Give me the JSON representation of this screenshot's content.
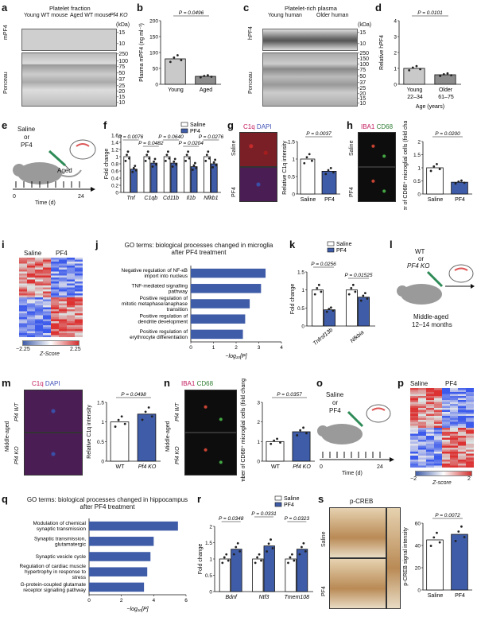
{
  "panels": {
    "a": {
      "label": "a",
      "header": "Platelet fraction",
      "groups": [
        "Young WT mouse",
        "Aged WT mouse",
        "Pf4 KO"
      ],
      "unit": "(kDa)",
      "ylab_top": "mPF4",
      "ylab_bottom": "Ponceau",
      "mw_top": [
        "-15",
        "-10"
      ],
      "mw_bottom": [
        "-250",
        "-100",
        "-75",
        "-50",
        "-37",
        "-25",
        "-20",
        "-15",
        "-10"
      ]
    },
    "b": {
      "label": "b",
      "p": "P = 0.0496"
    },
    "c": {
      "label": "c",
      "header": "Platelet-rich plasma",
      "groups": [
        "Young human",
        "Older human"
      ],
      "unit": "(kDa)",
      "ylab_top": "hPF4",
      "ylab_bottom": "Ponceau",
      "mw_top": [
        "-15",
        "-10"
      ],
      "mw_bottom": [
        "-250",
        "-150",
        "-100",
        "-75",
        "-50",
        "-37",
        "-25",
        "-20",
        "-15",
        "-10"
      ]
    },
    "d": {
      "label": "d",
      "p": "P = 0.0101",
      "age_ranges": [
        "22–34",
        "61–75"
      ]
    },
    "e": {
      "label": "e",
      "lines": [
        "Saline",
        "or",
        "PF4"
      ],
      "aged": "Aged",
      "t0": "0",
      "t1": "24",
      "xlab": "Time (d)"
    },
    "f": {
      "label": "f",
      "legend": [
        "Saline",
        "PF4"
      ],
      "pvals": [
        "P = 0.0076",
        "P = 0.0482",
        "P = 0.0640",
        "P = 0.0204",
        "P = 0.0276"
      ]
    },
    "g": {
      "label": "g",
      "stain1": "C1q",
      "stain2": "DAPI",
      "row1": "Saline",
      "row2": "PF4",
      "p": "P = 0.0037"
    },
    "h": {
      "label": "h",
      "stain1": "IBA1",
      "stain2": "CD68",
      "row1": "Saline",
      "row2": "PF4",
      "p": "P = 0.0200"
    },
    "i": {
      "label": "i",
      "cols": [
        "Saline",
        "PF4"
      ],
      "scale_min": "−2.25",
      "scale_max": "2.25",
      "scale_label": "Z-Score"
    },
    "j": {
      "label": "j",
      "title": "GO terms: biological processes changed in microglia after PF4 treatment"
    },
    "k": {
      "label": "k",
      "legend": [
        "Saline",
        "PF4"
      ],
      "pvals": [
        "P = 0.0256",
        "P = 0.01525"
      ]
    },
    "l": {
      "label": "l",
      "lines": [
        "WT",
        "or",
        "PF4 KO"
      ],
      "age_lines": [
        "Middle-aged",
        "12–14 months"
      ]
    },
    "m": {
      "label": "m",
      "stain1": "C1q",
      "stain2": "DAPI",
      "side": "Middle-aged",
      "row1": "Pf4 WT",
      "row2": "Pf4 KO",
      "p": "P = 0.0498"
    },
    "n": {
      "label": "n",
      "stain1": "IBA1",
      "stain2": "CD68",
      "side": "Middle-aged",
      "row1": "Pf4 WT",
      "row2": "Pf4 KO",
      "p": "P = 0.0357"
    },
    "o": {
      "label": "o",
      "lines": [
        "Saline",
        "or",
        "PF4"
      ],
      "t0": "0",
      "t1": "24",
      "xlab": "Time (d)"
    },
    "p": {
      "label": "p",
      "cols": [
        "Saline",
        "PF4"
      ],
      "scale_min": "−2",
      "scale_max": "2",
      "scale_label": "Z-score"
    },
    "q": {
      "label": "q",
      "title": "GO terms: biological processes changed in hippocampus after PF4 treatment"
    },
    "r": {
      "label": "r",
      "legend": [
        "Saline",
        "PF4"
      ],
      "pvals": [
        "P = 0.0348",
        "P = 0.0331",
        "P = 0.0323"
      ]
    },
    "s": {
      "label": "s",
      "stain": "p-CREB",
      "row1": "Saline",
      "row2": "PF4",
      "p": "P = 0.0072"
    }
  },
  "chart_data": [
    {
      "id": "b",
      "type": "bar",
      "categories": [
        "Young",
        "Aged"
      ],
      "values": [
        80,
        25
      ],
      "ylabel": "Plasma mPF4 (ng ml⁻¹)",
      "ylim": [
        0,
        200
      ],
      "yticks": [
        0,
        50,
        100,
        150,
        200
      ]
    },
    {
      "id": "d",
      "type": "bar",
      "categories": [
        "Young",
        "Older"
      ],
      "values": [
        1.0,
        0.6
      ],
      "ylabel": "Relative hPF4",
      "xlabel": "Age (years)",
      "ylim": [
        0,
        4
      ],
      "yticks": [
        0,
        1,
        2,
        3,
        4
      ]
    },
    {
      "id": "f",
      "type": "bar",
      "categories": [
        "Tnf",
        "C1qb",
        "Cd11b",
        "Il1b",
        "Nfkb1"
      ],
      "series": [
        {
          "name": "Saline",
          "values": [
            1.0,
            1.0,
            1.0,
            1.0,
            1.0
          ]
        },
        {
          "name": "PF4",
          "values": [
            0.65,
            0.82,
            0.82,
            0.72,
            0.8
          ]
        }
      ],
      "ylabel": "Fold change",
      "ylim": [
        0,
        1.6
      ],
      "yticks": [
        0,
        0.2,
        0.4,
        0.6,
        0.8,
        1.0,
        1.2,
        1.4,
        1.6
      ]
    },
    {
      "id": "g",
      "type": "bar",
      "categories": [
        "Saline",
        "PF4"
      ],
      "values": [
        1.0,
        0.65
      ],
      "ylabel": "Relative C1q intensity",
      "ylim": [
        0,
        1.5
      ],
      "yticks": [
        0,
        0.5,
        1.0,
        1.5
      ]
    },
    {
      "id": "h",
      "type": "bar",
      "categories": [
        "Saline",
        "PF4"
      ],
      "values": [
        1.0,
        0.45
      ],
      "ylabel": "Number of CD68⁺ microglial cells (fold change)",
      "ylim": [
        0,
        2.0
      ],
      "yticks": [
        0,
        0.5,
        1.0,
        1.5,
        2.0
      ]
    },
    {
      "id": "j",
      "type": "bar",
      "categories": [
        "Negative regulation of NF-κB import into nucleus",
        "TNF-mediated signalling pathway",
        "Positive regulation of mitotic metaphase/anaphase transition",
        "Positive regulation of dendrite development",
        "Positive regulation of erythrocyte differentiation"
      ],
      "values": [
        3.3,
        3.1,
        2.6,
        2.4,
        2.3
      ],
      "xlabel": "−log₁₀[P]",
      "xlim": [
        0,
        4
      ],
      "xticks": [
        0,
        1,
        2,
        3,
        4
      ]
    },
    {
      "id": "k",
      "type": "bar",
      "categories": [
        "Tnfrsf13b",
        "Nfkbia"
      ],
      "series": [
        {
          "name": "Saline",
          "values": [
            1.0,
            1.0
          ]
        },
        {
          "name": "PF4",
          "values": [
            0.45,
            0.8
          ]
        }
      ],
      "ylabel": "Fold change",
      "ylim": [
        0,
        1.5
      ],
      "yticks": [
        0,
        0.5,
        1.0,
        1.5
      ]
    },
    {
      "id": "m",
      "type": "bar",
      "categories": [
        "WT",
        "Pf4 KO"
      ],
      "values": [
        1.0,
        1.2
      ],
      "ylabel": "Relative C1q intensity",
      "ylim": [
        0,
        1.5
      ],
      "yticks": [
        0,
        0.5,
        1.0,
        1.5
      ]
    },
    {
      "id": "n",
      "type": "bar",
      "categories": [
        "WT",
        "Pf4 KO"
      ],
      "values": [
        1.0,
        1.5
      ],
      "ylabel": "Number of CD68⁺ microglial cells (fold change)",
      "ylim": [
        0,
        3
      ],
      "yticks": [
        0,
        1,
        2,
        3
      ]
    },
    {
      "id": "q",
      "type": "bar",
      "categories": [
        "Modulation of chemical synaptic transmission",
        "Synaptic transmission, glutamatergic",
        "Synaptic vesicle cycle",
        "Regulation of cardiac muscle hypertrophy in response to stress",
        "G-protein-coupled glutamate receptor signalling pathway"
      ],
      "values": [
        5.5,
        4.0,
        3.8,
        3.6,
        3.4
      ],
      "xlabel": "−log₁₀[P]",
      "xlim": [
        0,
        6
      ],
      "xticks": [
        0,
        2,
        4,
        6
      ]
    },
    {
      "id": "r",
      "type": "bar",
      "categories": [
        "Bdnf",
        "Ntf3",
        "Tmem108"
      ],
      "series": [
        {
          "name": "Saline",
          "values": [
            1.0,
            1.0,
            1.0
          ]
        },
        {
          "name": "PF4",
          "values": [
            1.3,
            1.4,
            1.3
          ]
        }
      ],
      "ylabel": "Fold change",
      "ylim": [
        0,
        2.0
      ],
      "yticks": [
        0,
        0.5,
        1.0,
        1.5,
        2.0
      ]
    },
    {
      "id": "s",
      "type": "bar",
      "categories": [
        "Saline",
        "PF4"
      ],
      "values": [
        45,
        50
      ],
      "ylabel": "p-CREB signal intensity",
      "ylim": [
        0,
        60
      ],
      "yticks": [
        0,
        20,
        40,
        60
      ]
    }
  ],
  "colors": {
    "saline": "#ffffff",
    "pf4": "#3f5ca8",
    "young": "#c9c9c9",
    "aged": "#8c8c8c"
  }
}
